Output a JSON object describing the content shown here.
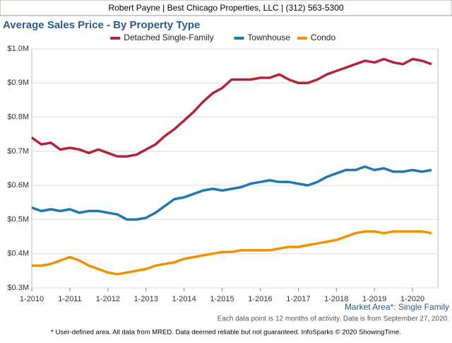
{
  "header": "Robert Payne | Best Chicago Properties, LLC | (312) 563-5300",
  "footer": "* User-defined area. All data from MRED. Data deemed reliable but not guaranteed. InfoSparks © 2020 ShowingTime.",
  "chart_data": {
    "type": "line",
    "title": "Average Sales Price - By Property Type",
    "subtitle": "Market Area*: Single Family",
    "note": "Each data point is 12 months of activity. Data is from September 27, 2020.",
    "legend": "top",
    "grid": true,
    "x": [
      "2010-01",
      "2010-04",
      "2010-07",
      "2010-10",
      "2011-01",
      "2011-04",
      "2011-07",
      "2011-10",
      "2012-01",
      "2012-04",
      "2012-07",
      "2012-10",
      "2013-01",
      "2013-04",
      "2013-07",
      "2013-10",
      "2014-01",
      "2014-04",
      "2014-07",
      "2014-10",
      "2015-01",
      "2015-04",
      "2015-07",
      "2015-10",
      "2016-01",
      "2016-04",
      "2016-07",
      "2016-10",
      "2017-01",
      "2017-04",
      "2017-07",
      "2017-10",
      "2018-01",
      "2018-04",
      "2018-07",
      "2018-10",
      "2019-01",
      "2019-04",
      "2019-07",
      "2019-10",
      "2020-01",
      "2020-04",
      "2020-07"
    ],
    "xlim": [
      "2010-01",
      "2020-09"
    ],
    "xticks": [
      {
        "value": "2010-01",
        "label": "1-2010"
      },
      {
        "value": "2011-01",
        "label": "1-2011"
      },
      {
        "value": "2012-01",
        "label": "1-2012"
      },
      {
        "value": "2013-01",
        "label": "1-2013"
      },
      {
        "value": "2014-01",
        "label": "1-2014"
      },
      {
        "value": "2015-01",
        "label": "1-2015"
      },
      {
        "value": "2016-01",
        "label": "1-2016"
      },
      {
        "value": "2017-01",
        "label": "1-2017"
      },
      {
        "value": "2018-01",
        "label": "1-2018"
      },
      {
        "value": "2019-01",
        "label": "1-2019"
      },
      {
        "value": "2020-01",
        "label": "1-2020"
      }
    ],
    "ylim": [
      300000,
      1000000
    ],
    "yticks": [
      {
        "value": 300000,
        "label": "$0.3M"
      },
      {
        "value": 400000,
        "label": "$0.4M"
      },
      {
        "value": 500000,
        "label": "$0.5M"
      },
      {
        "value": 600000,
        "label": "$0.6M"
      },
      {
        "value": 700000,
        "label": "$0.7M"
      },
      {
        "value": 800000,
        "label": "$0.8M"
      },
      {
        "value": 900000,
        "label": "$0.9M"
      },
      {
        "value": 1000000,
        "label": "$1.0M"
      }
    ],
    "series": [
      {
        "name": "Detached Single-Family",
        "color": "#b3243b",
        "values": [
          740000,
          720000,
          725000,
          705000,
          710000,
          705000,
          695000,
          705000,
          695000,
          685000,
          685000,
          690000,
          705000,
          720000,
          745000,
          765000,
          790000,
          815000,
          845000,
          870000,
          885000,
          910000,
          910000,
          910000,
          915000,
          915000,
          925000,
          910000,
          900000,
          900000,
          910000,
          925000,
          935000,
          945000,
          955000,
          965000,
          960000,
          970000,
          960000,
          955000,
          970000,
          965000,
          955000
        ]
      },
      {
        "name": "Townhouse",
        "color": "#1f77b4",
        "values": [
          535000,
          525000,
          530000,
          525000,
          530000,
          520000,
          525000,
          525000,
          520000,
          515000,
          500000,
          500000,
          505000,
          520000,
          540000,
          560000,
          565000,
          575000,
          585000,
          590000,
          585000,
          590000,
          595000,
          605000,
          610000,
          615000,
          610000,
          610000,
          605000,
          600000,
          610000,
          625000,
          635000,
          645000,
          645000,
          655000,
          645000,
          650000,
          640000,
          640000,
          645000,
          640000,
          645000
        ]
      },
      {
        "name": "Condo",
        "color": "#f39200",
        "values": [
          365000,
          365000,
          370000,
          380000,
          390000,
          380000,
          365000,
          355000,
          345000,
          340000,
          345000,
          350000,
          355000,
          365000,
          370000,
          375000,
          385000,
          390000,
          395000,
          400000,
          405000,
          405000,
          410000,
          410000,
          410000,
          410000,
          415000,
          420000,
          420000,
          425000,
          430000,
          435000,
          440000,
          450000,
          460000,
          465000,
          465000,
          460000,
          465000,
          465000,
          465000,
          465000,
          460000
        ]
      }
    ]
  }
}
